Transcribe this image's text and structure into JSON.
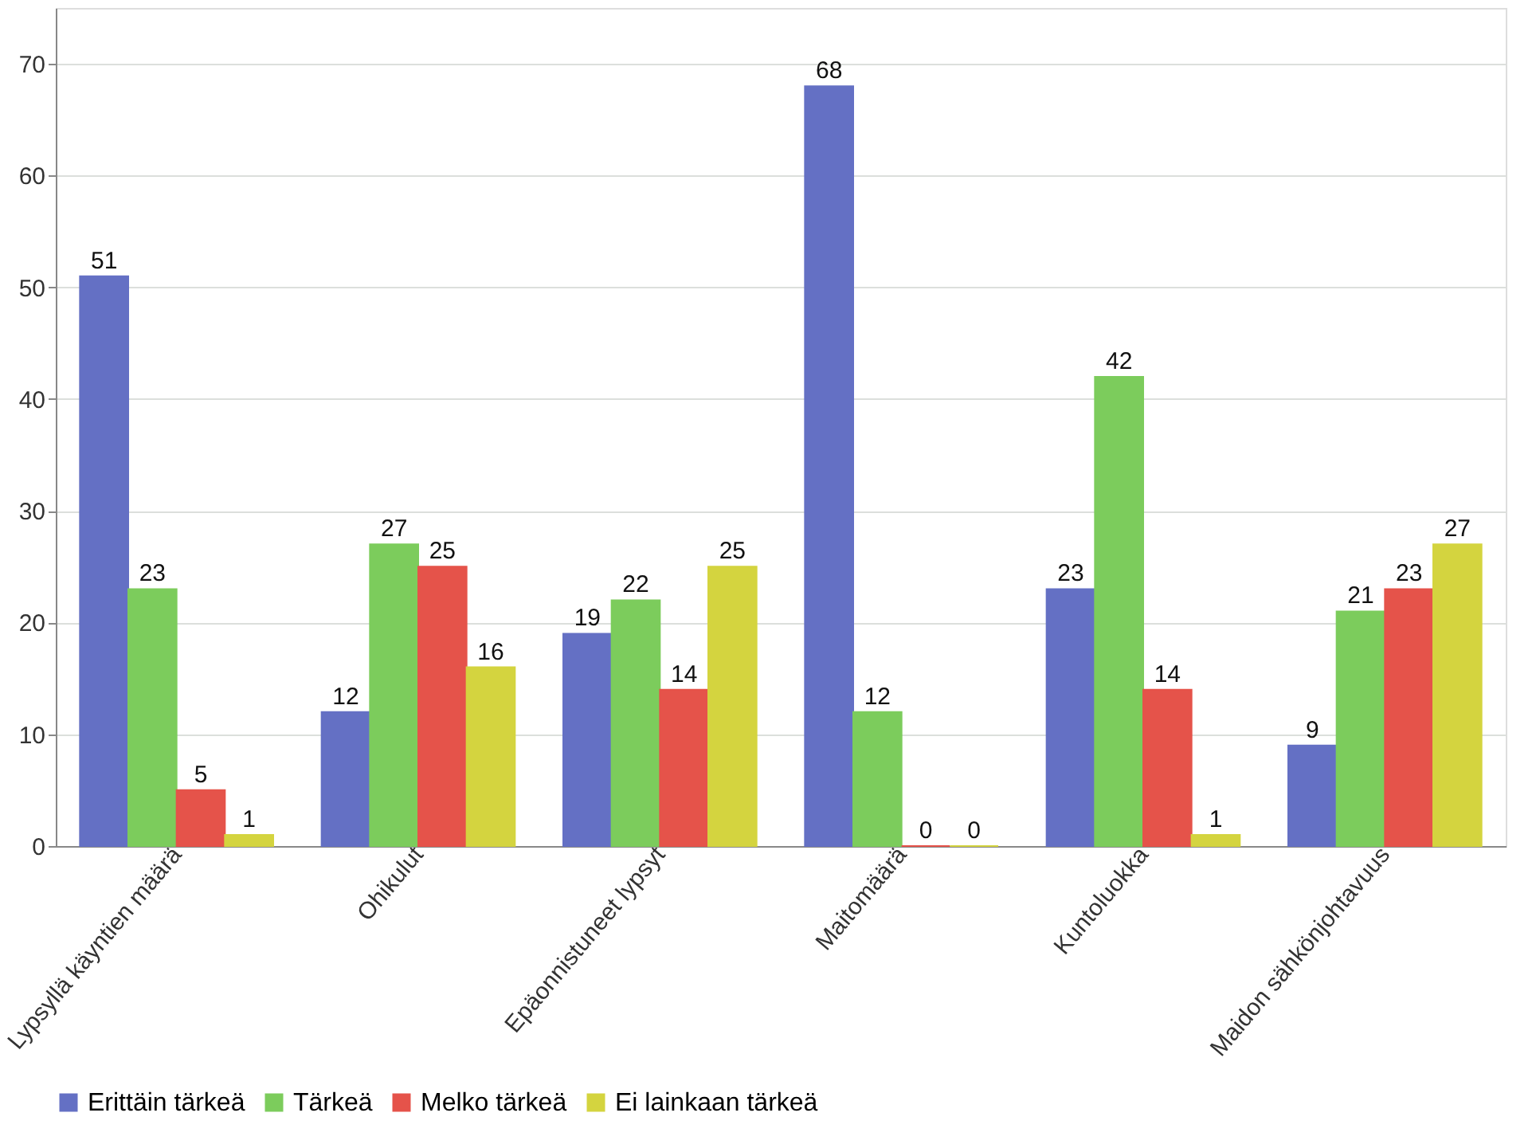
{
  "chart_data": {
    "type": "bar",
    "categories": [
      "Lypsyllä käyntien määrä",
      "Ohikulut",
      "Epäonnistuneet lypsyt",
      "Maitomäärä",
      "Kuntoluokka",
      "Maidon sähkönjohtavuus"
    ],
    "series": [
      {
        "name": "Erittäin tärkeä",
        "color": "#6470c4",
        "values": [
          51,
          12,
          19,
          68,
          23,
          9
        ]
      },
      {
        "name": "Tärkeä",
        "color": "#7ccc5c",
        "values": [
          23,
          27,
          22,
          12,
          42,
          21
        ]
      },
      {
        "name": "Melko tärkeä",
        "color": "#e5534a",
        "values": [
          5,
          25,
          14,
          0,
          14,
          23
        ]
      },
      {
        "name": "Ei lainkaan tärkeä",
        "color": "#d4d43f",
        "values": [
          1,
          16,
          25,
          0,
          1,
          27
        ]
      }
    ],
    "ylim": [
      0,
      75
    ],
    "yticks": [
      0,
      10,
      20,
      30,
      40,
      50,
      60,
      70
    ],
    "grid": "y",
    "legend": "bottom",
    "data_labels": true
  }
}
